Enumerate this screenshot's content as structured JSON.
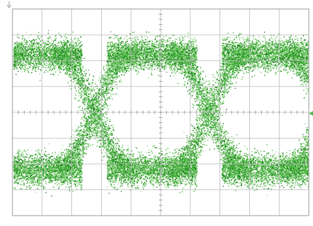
{
  "display": {
    "type": "eye-diagram",
    "graticule": {
      "divisions_x": 10,
      "divisions_y": 8,
      "minor_ticks_per_division": 5
    },
    "colors": {
      "background": "#ffffff",
      "grid": "#b8b8b8",
      "center_ticks": "#8a8a8a",
      "frame": "#9a9a9a",
      "trace_light": "#9ad98e",
      "trace_mid": "#44b53a",
      "trace_dark": "#117a12",
      "marker": "#55b84a"
    },
    "markers": {
      "trigger_marker_icon": "arrow-down-icon",
      "level_marker_icon": "arrow-left-icon"
    }
  }
}
